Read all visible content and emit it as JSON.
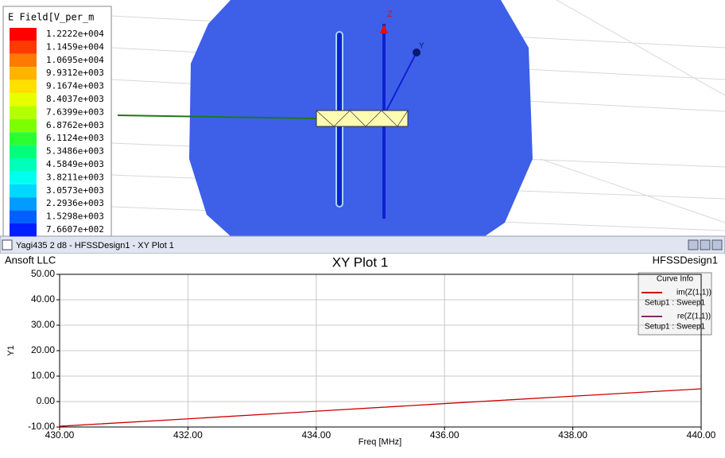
{
  "field_legend": {
    "title": "E Field[V_per_m",
    "labels": [
      "1.2222e+004",
      "1.1459e+004",
      "1.0695e+004",
      "9.9312e+003",
      "9.1674e+003",
      "8.4037e+003",
      "7.6399e+003",
      "6.8762e+003",
      "6.1124e+003",
      "5.3486e+003",
      "4.5849e+003",
      "3.8211e+003",
      "3.0573e+003",
      "2.2936e+003",
      "1.5298e+003",
      "7.6607e+002"
    ],
    "colors": [
      "#ff0000",
      "#ff3a00",
      "#ff7a00",
      "#ffb400",
      "#ffe000",
      "#e8ff00",
      "#b4ff00",
      "#7cff00",
      "#2cff30",
      "#00ff7a",
      "#00ffb8",
      "#00fff0",
      "#00d8ff",
      "#009cff",
      "#0060ff",
      "#0020ff"
    ]
  },
  "view": {
    "axis_labels": [
      "Z",
      "Y"
    ]
  },
  "window": {
    "title": "Yagi435 2 d8 - HFSSDesign1 - XY Plot 1"
  },
  "chart_data": {
    "type": "line",
    "title": "XY Plot 1",
    "header_left": "Ansoft LLC",
    "header_right": "HFSSDesign1",
    "x_label": "Freq [MHz]",
    "y_label": "Y1",
    "legend_title": "Curve Info",
    "grid": true,
    "x": [
      430,
      432,
      434,
      436,
      438,
      440
    ],
    "series": [
      {
        "name": "im(Z(1,1))",
        "setup": "Setup1 : Sweep1",
        "color": "#cc0000",
        "values": [
          -9.7,
          -6.8,
          -3.8,
          -0.8,
          2.1,
          5.0
        ]
      },
      {
        "name": "re(Z(1,1))",
        "setup": "Setup1 : Sweep1",
        "color": "#7a2f6e",
        "values": [
          null,
          null,
          null,
          null,
          null,
          null
        ]
      }
    ],
    "xlim": [
      430,
      440
    ],
    "xticks": [
      {
        "value": 430,
        "label": "430.00"
      },
      {
        "value": 432,
        "label": "432.00"
      },
      {
        "value": 434,
        "label": "434.00"
      },
      {
        "value": 436,
        "label": "436.00"
      },
      {
        "value": 438,
        "label": "438.00"
      },
      {
        "value": 440,
        "label": "440.00"
      }
    ],
    "ylim": [
      -10,
      50
    ],
    "yticks": [
      {
        "value": -10,
        "label": "-10.00"
      },
      {
        "value": 0,
        "label": "0.00"
      },
      {
        "value": 10,
        "label": "10.00"
      },
      {
        "value": 20,
        "label": "20.00"
      },
      {
        "value": 30,
        "label": "30.00"
      },
      {
        "value": 40,
        "label": "40.00"
      },
      {
        "value": 50,
        "label": "50.00"
      }
    ]
  }
}
